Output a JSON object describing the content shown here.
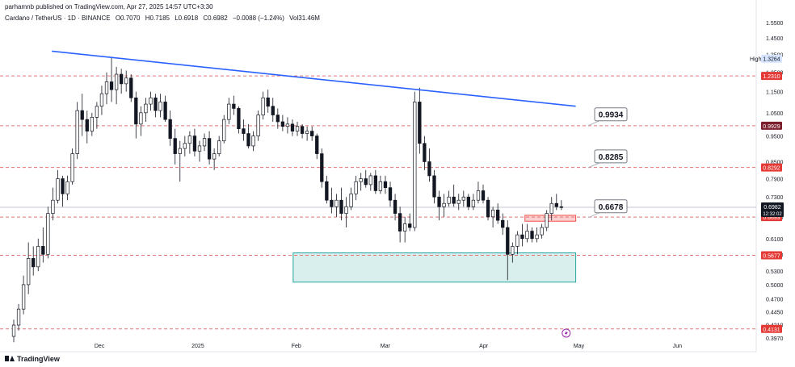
{
  "header": {
    "published": "parhamnb published on TradingView.com, Apr 27, 2025 14:57 UTC+3:30",
    "symbol": "Cardano / TetherUS · 1D · BINANCE",
    "open": "O0.7070",
    "high": "H0.7185",
    "low": "L0.6918",
    "close": "C0.6982",
    "change": "−0.0088 (−1.24%)",
    "volume": "Vol31.46M"
  },
  "brand": "TradingView",
  "colors": {
    "up": "#131722",
    "down": "#131722",
    "trendline": "#2962ff",
    "dashed": "#e57373",
    "zone_green": "#26a69a",
    "zone_red": "#ef5350"
  },
  "chart_data": {
    "type": "candlestick",
    "title": "",
    "x_labels": [
      "Dec",
      "2025",
      "Feb",
      "Mar",
      "Apr",
      "May",
      "Jun"
    ],
    "y_ticks": [
      1.55,
      1.45,
      1.35,
      1.25,
      1.15,
      1.05,
      0.95,
      0.85,
      0.79,
      0.73,
      0.67,
      0.61,
      0.57,
      0.53,
      0.5,
      0.47,
      0.445,
      0.421,
      0.397
    ],
    "y_tick_labels": [
      "1.5500",
      "1.4500",
      "1.3500",
      "1.2500",
      "1.1500",
      "1.0500",
      "0.9500",
      "0.8500",
      "0.7900",
      "0.7300",
      "0.6700",
      "0.6100",
      "0.5700",
      "0.5300",
      "0.5000",
      "0.4700",
      "0.4450",
      "0.4210",
      "0.3970"
    ],
    "y_scale": "log",
    "y_range": [
      0.385,
      1.65
    ],
    "high_marker": {
      "label": "High",
      "value": 1.3264,
      "text": "1.3264"
    },
    "horizontal_levels": [
      {
        "value": 1.231,
        "text": "1.2310"
      },
      {
        "value": 0.9929,
        "text": "0.9929"
      },
      {
        "value": 0.8292,
        "text": "0.8292"
      },
      {
        "value": 0.6693,
        "text": "0.6693"
      },
      {
        "value": 0.5677,
        "text": "0.5677"
      },
      {
        "value": 0.4131,
        "text": "0.4131"
      }
    ],
    "last_price": {
      "value": 0.6982,
      "text": "0.6982",
      "countdown": "12:32:02"
    },
    "callouts": [
      {
        "text": "0.9934",
        "value": 0.9934
      },
      {
        "text": "0.8285",
        "value": 0.8285
      },
      {
        "text": "0.6678",
        "value": 0.6678
      }
    ],
    "trendline": {
      "start": {
        "date": "2024-11-16",
        "value": 1.37
      },
      "end": {
        "date": "2025-04-30",
        "value": 1.08
      }
    },
    "zones": [
      {
        "name": "support-zone",
        "start": "2025-01-31",
        "end": "2025-04-30",
        "top": 0.5735,
        "bottom": 0.5055
      },
      {
        "name": "resistance-zone",
        "start": "2025-04-14",
        "end": "2025-04-30",
        "top": 0.6745,
        "bottom": 0.6575
      }
    ],
    "candles_ohlc": [
      [
        0.4,
        0.43,
        0.39,
        0.42
      ],
      [
        0.42,
        0.46,
        0.41,
        0.45
      ],
      [
        0.45,
        0.52,
        0.44,
        0.5
      ],
      [
        0.5,
        0.6,
        0.48,
        0.56
      ],
      [
        0.56,
        0.59,
        0.52,
        0.54
      ],
      [
        0.54,
        0.61,
        0.53,
        0.59
      ],
      [
        0.59,
        0.64,
        0.55,
        0.57
      ],
      [
        0.57,
        0.7,
        0.56,
        0.68
      ],
      [
        0.68,
        0.76,
        0.66,
        0.72
      ],
      [
        0.72,
        0.82,
        0.71,
        0.79
      ],
      [
        0.79,
        0.8,
        0.7,
        0.74
      ],
      [
        0.74,
        0.8,
        0.72,
        0.78
      ],
      [
        0.78,
        0.9,
        0.77,
        0.88
      ],
      [
        0.88,
        1.1,
        0.86,
        1.06
      ],
      [
        1.06,
        1.14,
        0.95,
        1.02
      ],
      [
        1.02,
        1.06,
        0.92,
        0.97
      ],
      [
        0.97,
        1.05,
        0.95,
        1.03
      ],
      [
        1.03,
        1.1,
        0.98,
        1.08
      ],
      [
        1.08,
        1.18,
        1.04,
        1.14
      ],
      [
        1.14,
        1.25,
        1.09,
        1.2
      ],
      [
        1.2,
        1.33,
        1.1,
        1.16
      ],
      [
        1.16,
        1.28,
        1.09,
        1.24
      ],
      [
        1.24,
        1.27,
        1.14,
        1.19
      ],
      [
        1.19,
        1.26,
        1.15,
        1.22
      ],
      [
        1.22,
        1.24,
        1.1,
        1.12
      ],
      [
        1.12,
        1.15,
        0.94,
        1.0
      ],
      [
        1.0,
        1.08,
        0.95,
        1.05
      ],
      [
        1.05,
        1.12,
        1.01,
        1.09
      ],
      [
        1.09,
        1.15,
        1.06,
        1.12
      ],
      [
        1.12,
        1.14,
        1.03,
        1.06
      ],
      [
        1.06,
        1.14,
        1.03,
        1.1
      ],
      [
        1.1,
        1.13,
        1.01,
        1.02
      ],
      [
        1.02,
        1.06,
        0.91,
        0.94
      ],
      [
        0.94,
        0.98,
        0.84,
        0.88
      ],
      [
        0.88,
        0.93,
        0.78,
        0.9
      ],
      [
        0.9,
        0.95,
        0.87,
        0.92
      ],
      [
        0.92,
        0.97,
        0.88,
        0.95
      ],
      [
        0.95,
        0.98,
        0.87,
        0.89
      ],
      [
        0.89,
        0.93,
        0.85,
        0.91
      ],
      [
        0.91,
        0.96,
        0.89,
        0.94
      ],
      [
        0.94,
        0.97,
        0.84,
        0.86
      ],
      [
        0.86,
        0.9,
        0.82,
        0.88
      ],
      [
        0.88,
        0.95,
        0.87,
        0.93
      ],
      [
        0.93,
        1.04,
        0.92,
        1.02
      ],
      [
        1.02,
        1.12,
        1.0,
        1.09
      ],
      [
        1.09,
        1.13,
        1.04,
        1.07
      ],
      [
        1.07,
        1.08,
        0.96,
        0.98
      ],
      [
        0.98,
        1.02,
        0.93,
        0.96
      ],
      [
        0.96,
        1.0,
        0.9,
        0.91
      ],
      [
        0.91,
        0.97,
        0.89,
        0.95
      ],
      [
        0.95,
        1.06,
        0.93,
        1.04
      ],
      [
        1.04,
        1.15,
        1.02,
        1.12
      ],
      [
        1.12,
        1.16,
        1.05,
        1.08
      ],
      [
        1.08,
        1.12,
        1.01,
        1.04
      ],
      [
        1.04,
        1.07,
        0.98,
        1.01
      ],
      [
        1.01,
        1.04,
        0.97,
        0.99
      ],
      [
        0.99,
        1.03,
        0.96,
        1.0
      ],
      [
        1.0,
        1.02,
        0.95,
        0.97
      ],
      [
        0.97,
        1.01,
        0.95,
        0.99
      ],
      [
        0.99,
        1.0,
        0.94,
        0.96
      ],
      [
        0.96,
        0.99,
        0.93,
        0.97
      ],
      [
        0.97,
        0.99,
        0.93,
        0.95
      ],
      [
        0.95,
        0.96,
        0.86,
        0.88
      ],
      [
        0.88,
        0.9,
        0.76,
        0.78
      ],
      [
        0.78,
        0.8,
        0.71,
        0.72
      ],
      [
        0.72,
        0.76,
        0.68,
        0.7
      ],
      [
        0.7,
        0.74,
        0.67,
        0.72
      ],
      [
        0.72,
        0.76,
        0.66,
        0.68
      ],
      [
        0.68,
        0.73,
        0.64,
        0.7
      ],
      [
        0.7,
        0.76,
        0.69,
        0.74
      ],
      [
        0.74,
        0.8,
        0.72,
        0.78
      ],
      [
        0.78,
        0.81,
        0.75,
        0.79
      ],
      [
        0.79,
        0.82,
        0.76,
        0.77
      ],
      [
        0.77,
        0.81,
        0.75,
        0.8
      ],
      [
        0.8,
        0.82,
        0.74,
        0.75
      ],
      [
        0.75,
        0.8,
        0.74,
        0.78
      ],
      [
        0.78,
        0.8,
        0.74,
        0.76
      ],
      [
        0.76,
        0.78,
        0.7,
        0.72
      ],
      [
        0.72,
        0.74,
        0.66,
        0.68
      ],
      [
        0.68,
        0.7,
        0.6,
        0.63
      ],
      [
        0.63,
        0.67,
        0.6,
        0.65
      ],
      [
        0.65,
        0.68,
        0.63,
        0.64
      ],
      [
        0.64,
        1.15,
        0.63,
        1.1
      ],
      [
        1.1,
        1.17,
        0.88,
        0.92
      ],
      [
        0.92,
        0.95,
        0.82,
        0.85
      ],
      [
        0.85,
        0.9,
        0.78,
        0.8
      ],
      [
        0.8,
        0.82,
        0.71,
        0.73
      ],
      [
        0.73,
        0.75,
        0.66,
        0.7
      ],
      [
        0.7,
        0.74,
        0.67,
        0.71
      ],
      [
        0.71,
        0.75,
        0.7,
        0.73
      ],
      [
        0.73,
        0.77,
        0.7,
        0.71
      ],
      [
        0.71,
        0.74,
        0.69,
        0.72
      ],
      [
        0.72,
        0.75,
        0.7,
        0.73
      ],
      [
        0.73,
        0.74,
        0.69,
        0.7
      ],
      [
        0.7,
        0.74,
        0.69,
        0.72
      ],
      [
        0.72,
        0.78,
        0.71,
        0.75
      ],
      [
        0.75,
        0.77,
        0.71,
        0.72
      ],
      [
        0.72,
        0.73,
        0.66,
        0.67
      ],
      [
        0.67,
        0.7,
        0.64,
        0.69
      ],
      [
        0.69,
        0.71,
        0.65,
        0.66
      ],
      [
        0.66,
        0.68,
        0.62,
        0.64
      ],
      [
        0.64,
        0.66,
        0.51,
        0.57
      ],
      [
        0.57,
        0.6,
        0.55,
        0.59
      ],
      [
        0.59,
        0.63,
        0.57,
        0.62
      ],
      [
        0.62,
        0.65,
        0.59,
        0.61
      ],
      [
        0.61,
        0.65,
        0.6,
        0.63
      ],
      [
        0.63,
        0.64,
        0.6,
        0.61
      ],
      [
        0.61,
        0.64,
        0.6,
        0.62
      ],
      [
        0.62,
        0.65,
        0.61,
        0.64
      ],
      [
        0.64,
        0.69,
        0.63,
        0.68
      ],
      [
        0.68,
        0.73,
        0.66,
        0.71
      ],
      [
        0.71,
        0.74,
        0.69,
        0.7
      ],
      [
        0.7,
        0.72,
        0.69,
        0.6982
      ]
    ]
  }
}
